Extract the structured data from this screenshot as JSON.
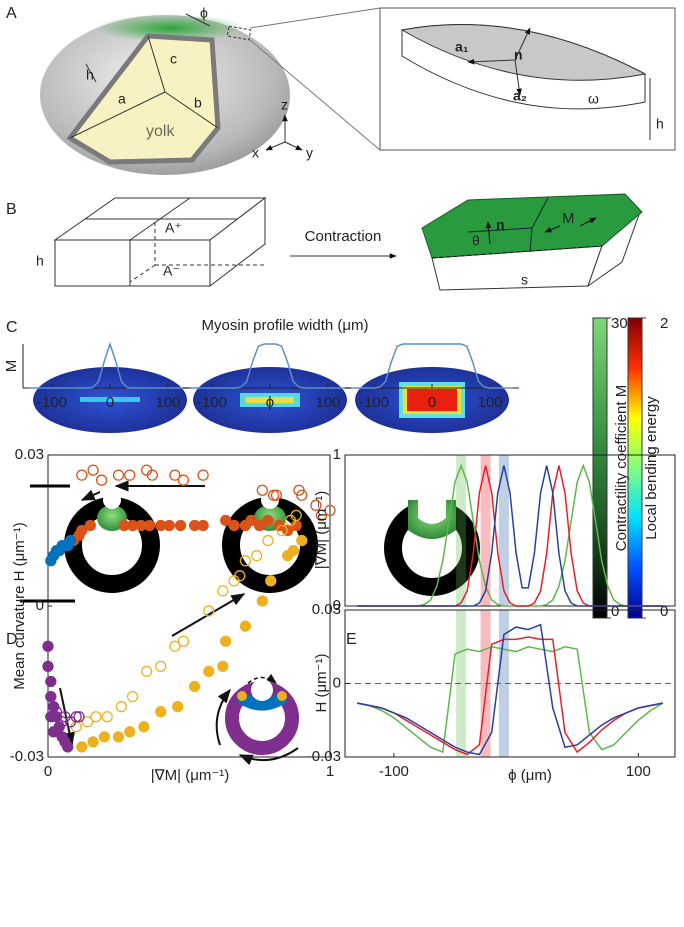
{
  "panel_labels": [
    "A",
    "B",
    "C",
    "D",
    "E"
  ],
  "panel_a": {
    "phi": "ϕ",
    "c": "c",
    "h": "h",
    "a": "a",
    "b": "b",
    "yolk": "yolk",
    "z": "z",
    "x": "x",
    "y": "y",
    "inset": {
      "a1": "a₁",
      "n": "n",
      "a2": "a₂",
      "omega": "ω",
      "h": "h"
    }
  },
  "panel_b": {
    "h": "h",
    "a_plus": "A⁺",
    "a_minus": "A⁻",
    "arrow_label": "Contraction",
    "theta": "θ",
    "n": "n",
    "m": "M",
    "s": "s"
  },
  "panel_c": {
    "title": "Myosin profile width (μm)",
    "colorbars": [
      {
        "label": "Contractility coefficient M",
        "ticks": [
          0,
          30
        ],
        "colors": [
          "#000000",
          "#1f5a2a",
          "#3f9f46",
          "#7fd67a"
        ]
      },
      {
        "label": "Local bending energy",
        "ticks": [
          0,
          2
        ],
        "colors": [
          "#00008f",
          "#0050ff",
          "#00e0ff",
          "#80ff80",
          "#ffff00",
          "#ff3000",
          "#800000"
        ]
      }
    ]
  },
  "chart_data": [
    {
      "type": "line",
      "ylabel": "M",
      "x": [
        -140,
        -130,
        -120,
        -110,
        -100,
        -90,
        -80,
        -70,
        -60,
        -50,
        -40,
        -30,
        -20,
        -10,
        0,
        10,
        20,
        30,
        40,
        50,
        60,
        70,
        80,
        90,
        100,
        110,
        120,
        130,
        140
      ],
      "series": [
        {
          "color": "#5b8fc9",
          "values": [
            0,
            0,
            0,
            0,
            0,
            0,
            0,
            0,
            0,
            0,
            0,
            0.01,
            0.14,
            0.6,
            1,
            0.6,
            0.14,
            0.01,
            0,
            0,
            0,
            0,
            0,
            0,
            0,
            0,
            0,
            0,
            0
          ]
        }
      ],
      "xlim": [
        -150,
        150
      ],
      "ylim": [
        0,
        1
      ],
      "xticks": [
        -100,
        0,
        100
      ]
    },
    {
      "type": "line",
      "x": [
        -140,
        -130,
        -120,
        -110,
        -100,
        -90,
        -80,
        -70,
        -60,
        -50,
        -40,
        -30,
        -20,
        -10,
        0,
        10,
        20,
        30,
        40,
        50,
        60,
        70,
        80,
        90,
        100,
        110,
        120,
        130,
        140
      ],
      "series": [
        {
          "color": "#5b8fc9",
          "values": [
            0,
            0,
            0,
            0,
            0,
            0,
            0,
            0,
            0,
            0.02,
            0.15,
            0.6,
            0.95,
            1,
            1,
            1,
            0.95,
            0.6,
            0.15,
            0.02,
            0,
            0,
            0,
            0,
            0,
            0,
            0,
            0,
            0
          ]
        }
      ],
      "xlim": [
        -150,
        150
      ],
      "ylim": [
        0,
        1
      ],
      "xticks": [
        -100,
        {
          "value": 0,
          "label": "ϕ"
        },
        100
      ]
    },
    {
      "type": "line",
      "x": [
        -140,
        -130,
        -120,
        -110,
        -100,
        -90,
        -80,
        -70,
        -60,
        -50,
        -40,
        -30,
        -20,
        -10,
        0,
        10,
        20,
        30,
        40,
        50,
        60,
        70,
        80,
        90,
        100,
        110,
        120,
        130,
        140
      ],
      "series": [
        {
          "color": "#5b8fc9",
          "values": [
            0,
            0,
            0,
            0,
            0,
            0.02,
            0.15,
            0.6,
            0.95,
            1,
            1,
            1,
            1,
            1,
            1,
            1,
            1,
            1,
            1,
            1,
            0.95,
            0.6,
            0.15,
            0.02,
            0,
            0,
            0,
            0,
            0
          ]
        }
      ],
      "xlim": [
        -150,
        150
      ],
      "ylim": [
        0,
        1
      ],
      "xticks": [
        -100,
        0,
        100
      ]
    },
    {
      "type": "scatter",
      "ylabel": "Mean curvature H (μm⁻¹)",
      "xlabel": "|∇M| (μm⁻¹)",
      "frame": true,
      "xlim": [
        0,
        1
      ],
      "ylim": [
        -0.03,
        0.03
      ],
      "xticks": [
        0,
        1
      ],
      "yticks": [
        -0.03,
        0,
        0.03
      ],
      "series": [
        {
          "color": "#d95319",
          "marker": "open",
          "x": [
            0.12,
            0.16,
            0.19,
            0.25,
            0.29,
            0.35,
            0.37,
            0.45,
            0.48,
            0.55,
            0.76,
            0.8,
            0.81,
            0.89,
            0.9,
            0.95,
            0.97,
            1.0
          ],
          "values": [
            0.026,
            0.027,
            0.025,
            0.026,
            0.026,
            0.027,
            0.026,
            0.026,
            0.025,
            0.026,
            0.023,
            0.022,
            0.022,
            0.023,
            0.022,
            0.02,
            0.018,
            0.019
          ]
        },
        {
          "color": "#d95319",
          "marker": "filled",
          "x": [
            0.09,
            0.11,
            0.12,
            0.15,
            0.27,
            0.3,
            0.33,
            0.36,
            0.4,
            0.43,
            0.47,
            0.52,
            0.55,
            0.63,
            0.66,
            0.7,
            0.72,
            0.75,
            0.78,
            0.82,
            0.85,
            0.88
          ],
          "values": [
            0.013,
            0.014,
            0.015,
            0.016,
            0.016,
            0.016,
            0.016,
            0.016,
            0.016,
            0.016,
            0.016,
            0.016,
            0.016,
            0.017,
            0.016,
            0.016,
            0.017,
            0.016,
            0.017,
            0.016,
            0.015,
            0.016
          ]
        },
        {
          "color": "#0072bd",
          "marker": "filled",
          "x": [
            0.01,
            0.02,
            0.03,
            0.04,
            0.05,
            0.06,
            0.07,
            0.08
          ],
          "values": [
            0.009,
            0.01,
            0.011,
            0.011,
            0.012,
            0.012,
            0.012,
            0.013
          ]
        },
        {
          "color": "#edb120",
          "marker": "open",
          "x": [
            0.1,
            0.14,
            0.17,
            0.21,
            0.26,
            0.3,
            0.35,
            0.4,
            0.45,
            0.48,
            0.57,
            0.62,
            0.66,
            0.68,
            0.7,
            0.74,
            0.78,
            0.83,
            0.86,
            0.88
          ],
          "values": [
            -0.024,
            -0.023,
            -0.022,
            -0.022,
            -0.02,
            -0.018,
            -0.013,
            -0.012,
            -0.008,
            -0.007,
            -0.001,
            0.003,
            0.005,
            0.006,
            0.009,
            0.01,
            0.013,
            0.015,
            0.017,
            0.018
          ]
        },
        {
          "color": "#edb120",
          "marker": "filled",
          "x": [
            0.12,
            0.16,
            0.2,
            0.25,
            0.29,
            0.34,
            0.4,
            0.46,
            0.52,
            0.57,
            0.62,
            0.63,
            0.7,
            0.76,
            0.79,
            0.85,
            0.87,
            0.9
          ],
          "values": [
            -0.028,
            -0.027,
            -0.026,
            -0.026,
            -0.025,
            -0.024,
            -0.021,
            -0.02,
            -0.016,
            -0.013,
            -0.012,
            -0.007,
            -0.004,
            0.001,
            0.005,
            0.01,
            0.011,
            0.013
          ]
        },
        {
          "color": "#7e2f8e",
          "marker": "filled",
          "x": [
            0.0,
            0.0,
            0.01,
            0.01,
            0.02,
            0.03,
            0.04,
            0.05,
            0.06,
            0.07,
            0.02,
            0.01
          ],
          "values": [
            -0.008,
            -0.012,
            -0.015,
            -0.018,
            -0.02,
            -0.022,
            -0.024,
            -0.026,
            -0.027,
            -0.028,
            -0.025,
            -0.022
          ]
        },
        {
          "color": "#7e2f8e",
          "marker": "open",
          "x": [
            0.03,
            0.05,
            0.06,
            0.08,
            0.1,
            0.11
          ],
          "values": [
            -0.021,
            -0.023,
            -0.022,
            -0.023,
            -0.022,
            -0.022
          ]
        }
      ]
    },
    {
      "type": "line",
      "ylabel": "|∇M| (μm⁻¹)",
      "frame": true,
      "xlim": [
        -140,
        130
      ],
      "ylim": [
        0,
        1
      ],
      "yticks": [
        0,
        1
      ],
      "x": [
        -130,
        -125,
        -120,
        -115,
        -110,
        -105,
        -100,
        -95,
        -90,
        -85,
        -80,
        -75,
        -70,
        -65,
        -60,
        -55,
        -50,
        -45,
        -40,
        -35,
        -30,
        -25,
        -20,
        -15,
        -10,
        -5,
        0,
        5,
        10,
        15,
        20,
        25,
        30,
        35,
        40,
        45,
        50,
        55,
        60,
        65,
        70,
        75,
        80,
        85,
        90,
        95,
        100,
        105,
        110,
        115,
        120
      ],
      "series": [
        {
          "color": "#5cb84a",
          "values": [
            0,
            0,
            0,
            0,
            0,
            0,
            0,
            0,
            0,
            0,
            0,
            0.01,
            0.04,
            0.13,
            0.3,
            0.56,
            0.82,
            0.93,
            0.82,
            0.56,
            0.3,
            0.13,
            0.04,
            0.01,
            0,
            0,
            0,
            0,
            0,
            0,
            0,
            0.01,
            0.04,
            0.13,
            0.3,
            0.56,
            0.82,
            0.93,
            0.82,
            0.56,
            0.3,
            0.13,
            0.04,
            0.01,
            0,
            0,
            0,
            0,
            0,
            0,
            0
          ]
        },
        {
          "color": "#e8202a",
          "values": [
            0,
            0,
            0,
            0,
            0,
            0,
            0,
            0,
            0,
            0,
            0,
            0,
            0,
            0,
            0,
            0,
            0,
            0.02,
            0.1,
            0.35,
            0.75,
            0.93,
            0.75,
            0.35,
            0.1,
            0.02,
            0,
            0,
            0,
            0.02,
            0.1,
            0.35,
            0.75,
            0.93,
            0.75,
            0.35,
            0.1,
            0.02,
            0,
            0,
            0,
            0,
            0,
            0,
            0,
            0,
            0,
            0,
            0,
            0,
            0
          ]
        },
        {
          "color": "#2a3f9f",
          "values": [
            0,
            0,
            0,
            0,
            0,
            0,
            0,
            0,
            0,
            0,
            0,
            0,
            0,
            0,
            0,
            0,
            0,
            0,
            0,
            0,
            0.02,
            0.1,
            0.35,
            0.75,
            0.93,
            0.75,
            0.35,
            0.12,
            0.12,
            0.35,
            0.75,
            0.93,
            0.75,
            0.35,
            0.1,
            0.02,
            0,
            0,
            0,
            0,
            0,
            0,
            0,
            0,
            0,
            0,
            0,
            0,
            0,
            0,
            0
          ]
        }
      ],
      "bands": [
        {
          "value": -45,
          "color": "#5cb84a"
        },
        {
          "value": -25,
          "color": "#e8202a"
        },
        {
          "value": -10,
          "color": "#2a5fa8"
        }
      ]
    },
    {
      "type": "line",
      "ylabel": "H (μm⁻¹)",
      "xlabel": "ϕ (μm)",
      "frame": true,
      "xlim": [
        -140,
        130
      ],
      "ylim": [
        -0.03,
        0.03
      ],
      "xticks": [
        -100,
        100
      ],
      "yticks": [
        -0.03,
        0,
        0.03
      ],
      "hline": 0,
      "hline_color": "#e8202a",
      "x": [
        -130,
        -120,
        -110,
        -100,
        -90,
        -80,
        -70,
        -60,
        -50,
        -40,
        -30,
        -20,
        -10,
        0,
        10,
        20,
        30,
        40,
        50,
        60,
        70,
        80,
        90,
        100,
        110,
        120
      ],
      "series": [
        {
          "color": "#5cb84a",
          "values": [
            -0.008,
            -0.009,
            -0.011,
            -0.014,
            -0.018,
            -0.022,
            -0.026,
            -0.028,
            0.012,
            0.014,
            0.013,
            0.015,
            0.014,
            0.013,
            0.015,
            0.014,
            0.013,
            0.015,
            0.014,
            -0.02,
            -0.027,
            -0.025,
            -0.02,
            -0.015,
            -0.011,
            -0.008
          ]
        },
        {
          "color": "#e8202a",
          "values": [
            -0.008,
            -0.009,
            -0.01,
            -0.012,
            -0.015,
            -0.018,
            -0.021,
            -0.024,
            -0.027,
            -0.029,
            -0.025,
            0.016,
            0.018,
            0.018,
            0.019,
            0.018,
            0.018,
            -0.02,
            -0.028,
            -0.024,
            -0.019,
            -0.015,
            -0.012,
            -0.01,
            -0.009,
            -0.008
          ]
        },
        {
          "color": "#2a3f9f",
          "values": [
            -0.008,
            -0.009,
            -0.01,
            -0.012,
            -0.014,
            -0.017,
            -0.02,
            -0.023,
            -0.026,
            -0.028,
            -0.029,
            -0.02,
            0.02,
            0.023,
            0.022,
            0.024,
            -0.01,
            -0.026,
            -0.025,
            -0.021,
            -0.017,
            -0.014,
            -0.012,
            -0.01,
            -0.009,
            -0.008
          ]
        }
      ],
      "bands": [
        {
          "value": -45,
          "color": "#5cb84a"
        },
        {
          "value": -25,
          "color": "#e8202a"
        },
        {
          "value": -10,
          "color": "#2a5fa8"
        }
      ]
    }
  ]
}
